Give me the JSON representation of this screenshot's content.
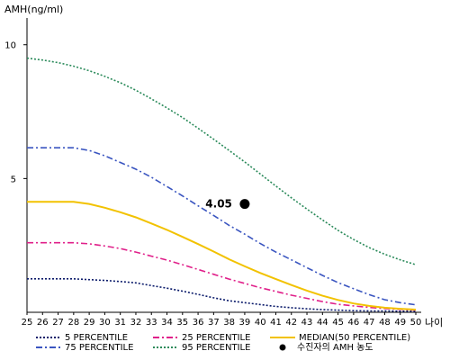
{
  "chart_data": {
    "type": "line",
    "ylabel": "AMH(ng/ml)",
    "xlabel": "나이",
    "xlim": [
      25,
      50
    ],
    "ylim": [
      0,
      11
    ],
    "yticks": [
      5,
      10
    ],
    "x": [
      25,
      26,
      27,
      28,
      29,
      30,
      31,
      32,
      33,
      34,
      35,
      36,
      37,
      38,
      39,
      40,
      41,
      42,
      43,
      44,
      45,
      46,
      47,
      48,
      49,
      50
    ],
    "series": [
      {
        "name": "5 PERCENTILE",
        "color": "#0a1a6a",
        "dash": "2,2",
        "values": [
          1.25,
          1.25,
          1.25,
          1.25,
          1.22,
          1.19,
          1.15,
          1.1,
          1.0,
          0.9,
          0.79,
          0.67,
          0.54,
          0.43,
          0.36,
          0.29,
          0.22,
          0.17,
          0.13,
          0.1,
          0.08,
          0.06,
          0.05,
          0.05,
          0.04,
          0.04
        ]
      },
      {
        "name": "75 PERCENTILE",
        "color": "#3a55c0",
        "dash": "7,3,2,3",
        "values": [
          6.15,
          6.15,
          6.15,
          6.15,
          6.05,
          5.85,
          5.6,
          5.35,
          5.05,
          4.7,
          4.35,
          3.98,
          3.62,
          3.25,
          2.92,
          2.57,
          2.25,
          1.96,
          1.67,
          1.38,
          1.11,
          0.88,
          0.66,
          0.47,
          0.36,
          0.28
        ]
      },
      {
        "name": "25 PERCENTILE",
        "color": "#e0208a",
        "dash": "7,3,2,3",
        "values": [
          2.6,
          2.6,
          2.6,
          2.6,
          2.56,
          2.48,
          2.38,
          2.25,
          2.1,
          1.95,
          1.78,
          1.6,
          1.42,
          1.24,
          1.08,
          0.92,
          0.78,
          0.64,
          0.52,
          0.4,
          0.3,
          0.24,
          0.18,
          0.14,
          0.11,
          0.08
        ]
      },
      {
        "name": "95 PERCENTILE",
        "color": "#2a8a5a",
        "dash": "2,2",
        "values": [
          9.5,
          9.43,
          9.33,
          9.2,
          9.03,
          8.82,
          8.58,
          8.3,
          7.98,
          7.64,
          7.28,
          6.88,
          6.47,
          6.05,
          5.62,
          5.17,
          4.72,
          4.28,
          3.86,
          3.45,
          3.06,
          2.72,
          2.42,
          2.17,
          1.96,
          1.78
        ]
      },
      {
        "name": "MEDIAN(50 PERCENTILE)",
        "color": "#f2c200",
        "dash": "",
        "values": [
          4.13,
          4.13,
          4.13,
          4.13,
          4.05,
          3.91,
          3.74,
          3.55,
          3.32,
          3.08,
          2.82,
          2.55,
          2.27,
          1.98,
          1.72,
          1.47,
          1.24,
          1.02,
          0.81,
          0.62,
          0.46,
          0.33,
          0.24,
          0.17,
          0.13,
          0.1
        ]
      }
    ],
    "point": {
      "name": "수진자의 AMH 농도",
      "x": 39,
      "y": 4.05,
      "label": "4.05",
      "color": "#000000"
    }
  }
}
